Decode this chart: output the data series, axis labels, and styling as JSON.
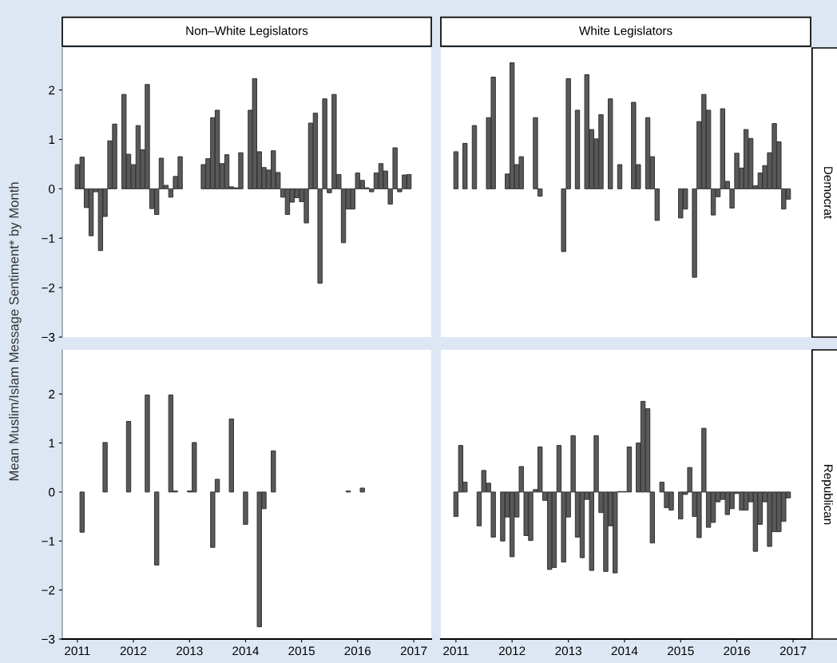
{
  "chart_data": [
    {
      "type": "bar",
      "title": "Non–White Legislators",
      "ylabel": "Mean Muslim/Islam Message Sentiment* by Month",
      "color": "#595959",
      "tick_labels": "y",
      "grid": false,
      "legend": false,
      "x": [
        "2011-01",
        "2011-02",
        "2011-03",
        "2011-04",
        "2011-05",
        "2011-06",
        "2011-07",
        "2011-08",
        "2011-09",
        "2011-10",
        "2011-11",
        "2011-12",
        "2012-01",
        "2012-02",
        "2012-03",
        "2012-04",
        "2012-05",
        "2012-06",
        "2012-07",
        "2012-08",
        "2012-09",
        "2012-10",
        "2012-11",
        "2012-12",
        "2013-01",
        "2013-02",
        "2013-03",
        "2013-04",
        "2013-05",
        "2013-06",
        "2013-07",
        "2013-08",
        "2013-09",
        "2013-10",
        "2013-11",
        "2013-12",
        "2014-01",
        "2014-02",
        "2014-03",
        "2014-04",
        "2014-05",
        "2014-06",
        "2014-07",
        "2014-08",
        "2014-09",
        "2014-10",
        "2014-11",
        "2014-12",
        "2015-01",
        "2015-02",
        "2015-03",
        "2015-04",
        "2015-05",
        "2015-06",
        "2015-07",
        "2015-08",
        "2015-09",
        "2015-10",
        "2015-11",
        "2015-12",
        "2016-01",
        "2016-02",
        "2016-03",
        "2016-04",
        "2016-05",
        "2016-06",
        "2016-07",
        "2016-08",
        "2016-09",
        "2016-10",
        "2016-11",
        "2016-12"
      ],
      "values": [
        0.49,
        0.64,
        -0.38,
        -0.95,
        -0.06,
        -1.25,
        -0.56,
        0.97,
        1.31,
        null,
        1.91,
        0.7,
        0.49,
        1.28,
        0.79,
        2.11,
        -0.4,
        -0.52,
        0.62,
        0.07,
        -0.17,
        0.25,
        0.65,
        null,
        null,
        null,
        null,
        0.49,
        0.61,
        1.44,
        1.59,
        0.51,
        0.69,
        0.04,
        0.02,
        0.73,
        null,
        1.59,
        2.23,
        0.75,
        0.43,
        0.38,
        0.77,
        0.33,
        -0.17,
        -0.52,
        -0.27,
        -0.18,
        -0.26,
        -0.69,
        1.33,
        1.53,
        -1.91,
        1.82,
        -0.08,
        1.91,
        0.29,
        -1.09,
        -0.41,
        -0.41,
        0.32,
        0.17,
        0.02,
        -0.06,
        0.32,
        0.51,
        0.36,
        -0.31,
        0.83,
        -0.06,
        0.28,
        0.29
      ],
      "xlim": [
        "2010-09-25",
        "2017-04-25"
      ],
      "ylim": [
        -3,
        2.85
      ],
      "yticks": [
        {
          "value": -3,
          "label": "−3"
        },
        {
          "value": -2,
          "label": "−2"
        },
        {
          "value": -1,
          "label": "−1"
        },
        0,
        1,
        2
      ]
    },
    {
      "type": "bar",
      "title": "White Legislators",
      "annotations": [
        "Democrat"
      ],
      "color": "#595959",
      "tick_labels": false,
      "grid": false,
      "legend": false,
      "x": [
        "2011-01",
        "2011-02",
        "2011-03",
        "2011-04",
        "2011-05",
        "2011-06",
        "2011-07",
        "2011-08",
        "2011-09",
        "2011-10",
        "2011-11",
        "2011-12",
        "2012-01",
        "2012-02",
        "2012-03",
        "2012-04",
        "2012-05",
        "2012-06",
        "2012-07",
        "2012-08",
        "2012-09",
        "2012-10",
        "2012-11",
        "2012-12",
        "2013-01",
        "2013-02",
        "2013-03",
        "2013-04",
        "2013-05",
        "2013-06",
        "2013-07",
        "2013-08",
        "2013-09",
        "2013-10",
        "2013-11",
        "2013-12",
        "2014-01",
        "2014-02",
        "2014-03",
        "2014-04",
        "2014-05",
        "2014-06",
        "2014-07",
        "2014-08",
        "2014-09",
        "2014-10",
        "2014-11",
        "2014-12",
        "2015-01",
        "2015-02",
        "2015-03",
        "2015-04",
        "2015-05",
        "2015-06",
        "2015-07",
        "2015-08",
        "2015-09",
        "2015-10",
        "2015-11",
        "2015-12",
        "2016-01",
        "2016-02",
        "2016-03",
        "2016-04",
        "2016-05",
        "2016-06",
        "2016-07",
        "2016-08",
        "2016-09",
        "2016-10",
        "2016-11",
        "2016-12"
      ],
      "values": [
        0.75,
        null,
        0.92,
        null,
        1.28,
        null,
        null,
        1.44,
        2.26,
        null,
        null,
        0.3,
        2.55,
        0.49,
        0.65,
        null,
        null,
        1.44,
        -0.15,
        null,
        null,
        null,
        null,
        -1.27,
        2.23,
        null,
        1.59,
        null,
        2.31,
        1.2,
        1.01,
        1.5,
        null,
        1.82,
        null,
        0.49,
        null,
        null,
        1.75,
        0.49,
        null,
        1.44,
        0.65,
        -0.64,
        null,
        null,
        null,
        null,
        -0.59,
        -0.41,
        null,
        -1.79,
        1.36,
        1.91,
        1.59,
        -0.53,
        -0.16,
        1.62,
        0.15,
        -0.39,
        0.72,
        0.42,
        1.2,
        1.02,
        0.06,
        0.32,
        0.47,
        0.73,
        1.32,
        0.95,
        -0.41,
        -0.21
      ],
      "xlim": [
        "2010-09-25",
        "2017-04-25"
      ],
      "ylim": [
        -3,
        2.85
      ]
    },
    {
      "type": "bar",
      "color": "#595959",
      "grid": false,
      "legend": false,
      "x": [
        "2011-02",
        "2011-07",
        "2011-12",
        "2012-04",
        "2012-06",
        "2012-09",
        "2012-10",
        "2013-01",
        "2013-02",
        "2013-06",
        "2013-07",
        "2013-10",
        "2014-01",
        "2014-04",
        "2014-05",
        "2014-07",
        "2015-11",
        "2016-02"
      ],
      "values": [
        -0.82,
        1.01,
        1.44,
        1.98,
        -1.49,
        1.98,
        0.02,
        0.02,
        1.01,
        -1.13,
        0.26,
        1.49,
        -0.66,
        -2.75,
        -0.34,
        0.84,
        0.02,
        0.08
      ],
      "xlim": [
        "2010-09-25",
        "2017-04-25"
      ],
      "xticks": [
        "2011",
        "2012",
        "2013",
        "2014",
        "2015",
        "2016",
        "2017"
      ],
      "ylim": [
        -3,
        2.9
      ],
      "yticks": [
        {
          "value": -3,
          "label": "−3"
        },
        {
          "value": -2,
          "label": "−2"
        },
        {
          "value": -1,
          "label": "−1"
        },
        0,
        1,
        2
      ]
    },
    {
      "type": "bar",
      "annotations": [
        "Republican"
      ],
      "color": "#595959",
      "tick_labels": "x",
      "grid": false,
      "legend": false,
      "x": [
        "2011-01",
        "2011-02",
        "2011-03",
        "2011-04",
        "2011-05",
        "2011-06",
        "2011-07",
        "2011-08",
        "2011-09",
        "2011-10",
        "2011-11",
        "2011-12",
        "2012-01",
        "2012-02",
        "2012-03",
        "2012-04",
        "2012-05",
        "2012-06",
        "2012-07",
        "2012-08",
        "2012-09",
        "2012-10",
        "2012-11",
        "2012-12",
        "2013-01",
        "2013-02",
        "2013-03",
        "2013-04",
        "2013-05",
        "2013-06",
        "2013-07",
        "2013-08",
        "2013-09",
        "2013-10",
        "2013-11",
        "2013-12",
        "2014-01",
        "2014-02",
        "2014-03",
        "2014-04",
        "2014-05",
        "2014-06",
        "2014-07",
        "2014-08",
        "2014-09",
        "2014-10",
        "2014-11",
        "2014-12",
        "2015-01",
        "2015-02",
        "2015-03",
        "2015-04",
        "2015-05",
        "2015-06",
        "2015-07",
        "2015-08",
        "2015-09",
        "2015-10",
        "2015-11",
        "2015-12",
        "2016-01",
        "2016-02",
        "2016-03",
        "2016-04",
        "2016-05",
        "2016-06",
        "2016-07",
        "2016-08",
        "2016-09",
        "2016-10",
        "2016-11",
        "2016-12"
      ],
      "values": [
        -0.5,
        0.95,
        0.2,
        null,
        null,
        -0.69,
        0.44,
        0.18,
        -0.92,
        null,
        -1.0,
        -0.51,
        -1.32,
        -0.51,
        0.52,
        -0.89,
        -0.99,
        0.05,
        0.92,
        -0.17,
        -1.58,
        -1.54,
        0.95,
        -1.43,
        -0.51,
        1.15,
        -0.92,
        -1.34,
        -0.15,
        -1.6,
        1.15,
        -0.42,
        -1.62,
        -0.69,
        -1.65,
        0.01,
        0.01,
        0.92,
        null,
        1.0,
        1.85,
        1.7,
        -1.04,
        null,
        0.2,
        -0.32,
        -0.37,
        null,
        -0.55,
        -0.05,
        0.5,
        -0.5,
        -0.93,
        1.3,
        -0.72,
        -0.62,
        -0.2,
        -0.15,
        -0.46,
        -0.34,
        -0.03,
        -0.37,
        -0.37,
        -0.2,
        -1.21,
        -0.66,
        -0.2,
        -1.11,
        -0.81,
        -0.81,
        -0.6,
        -0.12
      ],
      "xlim": [
        "2010-09-25",
        "2017-04-25"
      ],
      "xticks": [
        "2011",
        "2012",
        "2013",
        "2014",
        "2015",
        "2016",
        "2017"
      ],
      "ylim": [
        -3,
        2.9
      ]
    }
  ]
}
